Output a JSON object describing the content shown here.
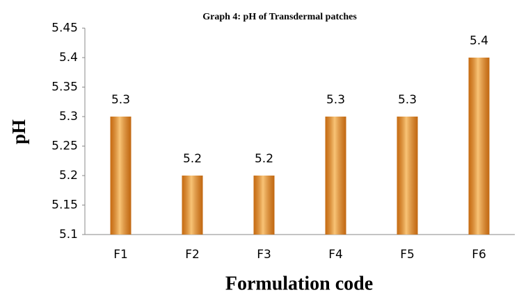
{
  "chart_data": {
    "type": "bar",
    "title": "Graph 4: pH of Transdermal patches",
    "x_label": "Formulation code",
    "y_label": "pH",
    "categories": [
      "F1",
      "F2",
      "F3",
      "F4",
      "F5",
      "F6"
    ],
    "values": [
      5.3,
      5.2,
      5.2,
      5.3,
      5.3,
      5.4
    ],
    "color": "#f08a1c",
    "ylim": [
      5.1,
      5.45
    ],
    "yticks": [
      5.1,
      5.15,
      5.2,
      5.25,
      5.3,
      5.35,
      5.4,
      5.45
    ],
    "grid": false
  }
}
